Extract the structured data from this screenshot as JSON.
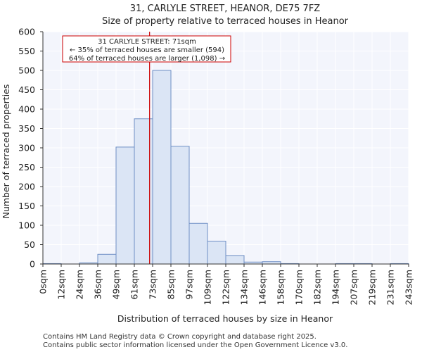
{
  "chart_data": {
    "type": "histogram",
    "title": [
      "31, CARLYLE STREET, HEANOR, DE75 7FZ",
      "Size of property relative to terraced houses in Heanor"
    ],
    "xlabel": "Distribution of terraced houses by size in Heanor",
    "ylabel": "Number of terraced properties",
    "ylim": [
      0,
      600
    ],
    "yticks": [
      0,
      50,
      100,
      150,
      200,
      250,
      300,
      350,
      400,
      450,
      500,
      550,
      600
    ],
    "xlim": [
      0,
      243
    ],
    "bin_edges": [
      0,
      12,
      24,
      36,
      49,
      61,
      73,
      85,
      97,
      109,
      122,
      134,
      146,
      158,
      170,
      182,
      194,
      207,
      219,
      231,
      243
    ],
    "tick_labels": [
      "0sqm",
      "12sqm",
      "24sqm",
      "36sqm",
      "49sqm",
      "61sqm",
      "73sqm",
      "85sqm",
      "97sqm",
      "109sqm",
      "122sqm",
      "134sqm",
      "146sqm",
      "158sqm",
      "170sqm",
      "182sqm",
      "194sqm",
      "207sqm",
      "219sqm",
      "231sqm",
      "243sqm"
    ],
    "values": [
      1,
      0,
      3,
      25,
      302,
      375,
      500,
      304,
      105,
      59,
      22,
      5,
      6,
      1,
      0,
      0,
      1,
      1,
      0,
      1
    ],
    "marker": {
      "value": 71,
      "lines": [
        "31 CARLYLE STREET: 71sqm",
        "← 35% of terraced houses are smaller (594)",
        "64% of terraced houses are larger (1,098) →"
      ]
    },
    "colors": {
      "bar_fill": "#dbe5f5",
      "bar_edge": "#6f8fc5",
      "marker": "#cc0000",
      "plot_bg": "#f3f5fc",
      "grid": "#ffffff"
    }
  },
  "footer": {
    "line1": "Contains HM Land Registry data © Crown copyright and database right 2025.",
    "line2": "Contains public sector information licensed under the Open Government Licence v3.0."
  }
}
